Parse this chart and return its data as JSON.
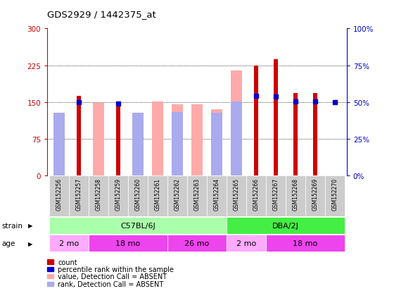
{
  "title": "GDS2929 / 1442375_at",
  "samples": [
    "GSM152256",
    "GSM152257",
    "GSM152258",
    "GSM152259",
    "GSM152260",
    "GSM152261",
    "GSM152262",
    "GSM152263",
    "GSM152264",
    "GSM152265",
    "GSM152266",
    "GSM152267",
    "GSM152268",
    "GSM152269",
    "GSM152270"
  ],
  "count_values": [
    null,
    163,
    null,
    150,
    null,
    null,
    null,
    null,
    null,
    null,
    225,
    237,
    168,
    168,
    null
  ],
  "absent_value": [
    128,
    null,
    148,
    null,
    112,
    151,
    145,
    145,
    135,
    215,
    null,
    null,
    null,
    null,
    null
  ],
  "absent_rank": [
    128,
    null,
    null,
    null,
    128,
    null,
    130,
    null,
    128,
    152,
    null,
    null,
    null,
    null,
    null
  ],
  "blue_dot_values": [
    null,
    150,
    null,
    147,
    null,
    null,
    null,
    null,
    null,
    null,
    163,
    162,
    151,
    151,
    150
  ],
  "ylim_left": [
    0,
    300
  ],
  "ylim_right": [
    0,
    100
  ],
  "yticks_left": [
    0,
    75,
    150,
    225,
    300
  ],
  "yticks_right": [
    0,
    25,
    50,
    75,
    100
  ],
  "ytick_labels_left": [
    "0",
    "75",
    "150",
    "225",
    "300"
  ],
  "ytick_labels_right": [
    "0%",
    "25%",
    "50%",
    "75%",
    "100%"
  ],
  "color_count": "#cc0000",
  "color_absent_value": "#ffaaaa",
  "color_absent_rank": "#aaaaee",
  "color_rank": "#0000cc",
  "color_strain_C57": "#aaffaa",
  "color_strain_DBA": "#44ee44",
  "color_age_light": "#ffaaff",
  "color_age_dark": "#ee44ee",
  "bg_color": "#ffffff",
  "strain_data": [
    [
      "C57BL/6J",
      0,
      8,
      "#aaffaa"
    ],
    [
      "DBA/2J",
      9,
      14,
      "#44ee44"
    ]
  ],
  "age_data": [
    [
      "2 mo",
      0,
      1,
      "#ffaaff"
    ],
    [
      "18 mo",
      2,
      5,
      "#ee44ee"
    ],
    [
      "26 mo",
      6,
      8,
      "#ee44ee"
    ],
    [
      "2 mo",
      9,
      10,
      "#ffaaff"
    ],
    [
      "18 mo",
      11,
      14,
      "#ee44ee"
    ]
  ]
}
